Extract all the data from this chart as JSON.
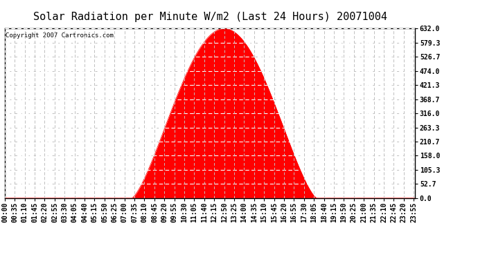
{
  "title": "Solar Radiation per Minute W/m2 (Last 24 Hours) 20071004",
  "copyright_text": "Copyright 2007 Cartronics.com",
  "bg_color": "#ffffff",
  "plot_bg_color": "#ffffff",
  "fill_color": "#ff0000",
  "line_color": "#ff0000",
  "grid_color": "#c0c0c0",
  "border_color": "#000000",
  "title_fontsize": 11,
  "copyright_fontsize": 6.5,
  "tick_fontsize": 7,
  "ytick_labels": [
    "0.0",
    "52.7",
    "105.3",
    "158.0",
    "210.7",
    "263.3",
    "316.0",
    "368.7",
    "421.3",
    "474.0",
    "526.7",
    "579.3",
    "632.0"
  ],
  "ytick_values": [
    0.0,
    52.7,
    105.3,
    158.0,
    210.7,
    263.3,
    316.0,
    368.7,
    421.3,
    474.0,
    526.7,
    579.3,
    632.0
  ],
  "ymax": 632.0,
  "ymin": 0.0,
  "peak_value": 632.0,
  "sunrise_minutes": 445,
  "sunset_minutes": 1095,
  "total_minutes": 1440,
  "xtick_interval_minutes": 35
}
